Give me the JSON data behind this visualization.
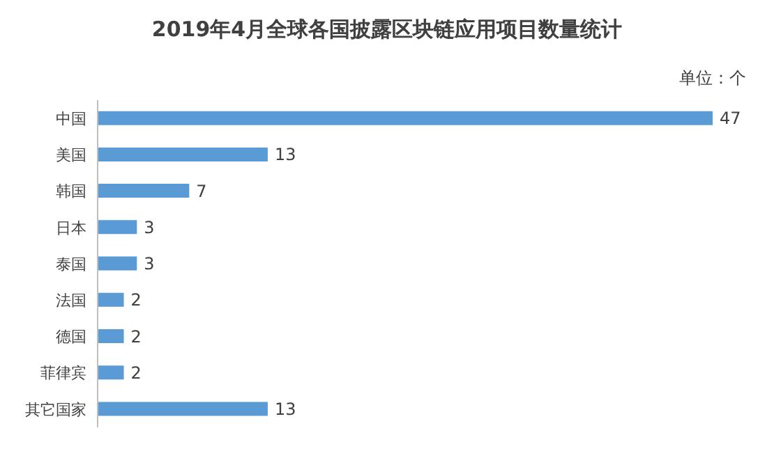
{
  "chart_data": {
    "type": "bar",
    "orientation": "horizontal",
    "title": "2019年4月全球各国披露区块链应用项目数量统计",
    "annotations": [
      "单位：个"
    ],
    "categories": [
      "中国",
      "美国",
      "韩国",
      "日本",
      "泰国",
      "法国",
      "德国",
      "菲律宾",
      "其它国家"
    ],
    "values": [
      47,
      13,
      7,
      3,
      3,
      2,
      2,
      2,
      13
    ],
    "color": "#5b9bd5",
    "data_labels": true,
    "tick_labels": "y"
  }
}
